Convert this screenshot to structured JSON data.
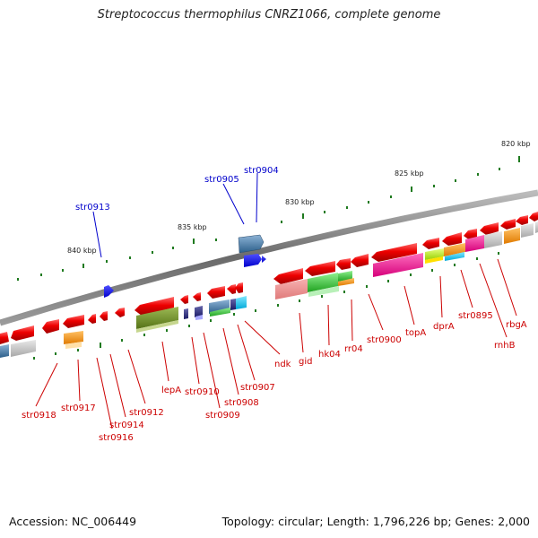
{
  "title": "Streptococcus thermophilus CNRZ1066, complete genome",
  "footer": {
    "accession": "Accession: NC_006449",
    "topology": "Topology: circular; Length: 1,796,226 bp; Genes: 2,000"
  },
  "scale_labels": [
    "820 kbp",
    "825 kbp",
    "830 kbp",
    "835 kbp",
    "840 kbp"
  ],
  "gene_labels_top": [
    "str0904",
    "str0905",
    "str0913"
  ],
  "gene_labels_bottom": [
    "str0918",
    "str0917",
    "str0916",
    "str0914",
    "str0912",
    "lepA",
    "str0910",
    "str0909",
    "str0908",
    "str0907",
    "ndk",
    "gid",
    "hk04",
    "rr04",
    "str0900",
    "topA",
    "dprA",
    "str0895",
    "rnhB",
    "rbgA"
  ],
  "colors": {
    "backbone": "#7d7d7d",
    "top_label": "#0000cc",
    "bottom_label": "#cc0000",
    "tick": "#1f7a1f"
  }
}
